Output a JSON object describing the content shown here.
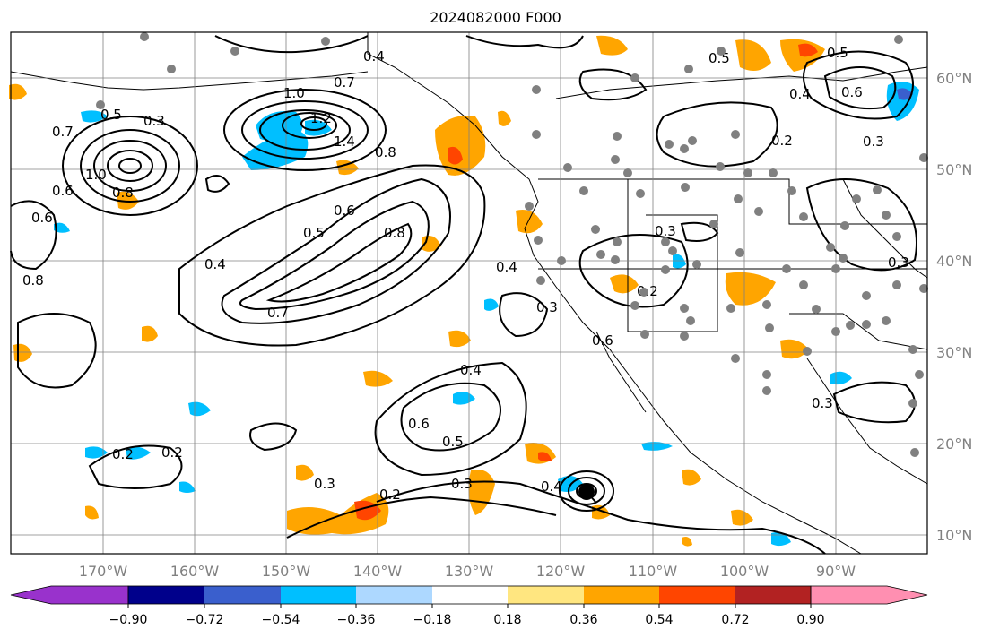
{
  "title": "2024082000 F000",
  "map": {
    "lat_labels": [
      "60°N",
      "50°N",
      "40°N",
      "30°N",
      "20°N",
      "10°N"
    ],
    "lon_labels": [
      "170°W",
      "160°W",
      "150°W",
      "140°W",
      "130°W",
      "120°W",
      "110°W",
      "100°W",
      "90°W"
    ],
    "contour_labels": [
      "0.4",
      "0.7",
      "1.0",
      "1.2",
      "1.4",
      "0.5",
      "0.7",
      "0.6",
      "0.8",
      "1.0",
      "0.6",
      "0.8",
      "0.8",
      "0.5",
      "0.6",
      "0.8",
      "0.4",
      "0.7",
      "0.4",
      "0.3",
      "0.4",
      "0.6",
      "0.5",
      "0.2",
      "0.3",
      "0.2",
      "0.2",
      "0.3",
      "0.4",
      "0.5",
      "0.6",
      "0.4",
      "0.2",
      "0.3",
      "0.3",
      "0.3",
      "0.5",
      "0.6",
      "0.3",
      "0.2",
      "0.3"
    ],
    "colors": {
      "contour": "#000000",
      "grid": "#808080",
      "station": "#808080",
      "land_border": "#000000"
    }
  },
  "colorbar": {
    "ticks": [
      "−0.90",
      "−0.72",
      "−0.54",
      "−0.36",
      "−0.18",
      "0.18",
      "0.36",
      "0.54",
      "0.72",
      "0.90"
    ],
    "colors": [
      "#9932cc",
      "#00008b",
      "#3a5fcd",
      "#00bfff",
      "#add8ff",
      "#ffffff",
      "#ffe680",
      "#ffa500",
      "#ff4500",
      "#b22222",
      "#ff8fb1"
    ]
  }
}
